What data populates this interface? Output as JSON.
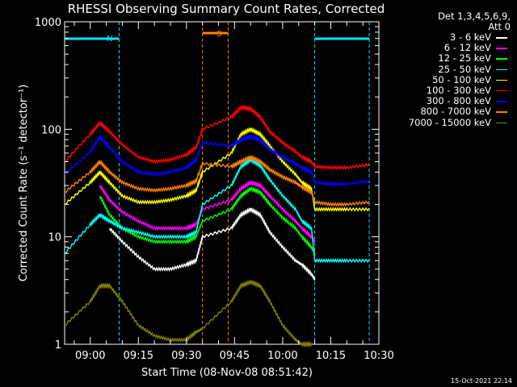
{
  "title": "RHESSI Observing Summary Count Rates, Corrected",
  "detectors": "Det 1,3,4,5,6,9,",
  "attenuator": "Att 0",
  "timestamp": "15-Oct-2021 22:14",
  "chart_data": {
    "type": "line",
    "xlabel": "Start Time (08-Nov-08 08:51:42)",
    "ylabel": "Corrected Count Rate (s⁻¹ detector⁻¹)",
    "y_scale": "log",
    "ylim": [
      1,
      1000
    ],
    "xlim": [
      "08:52",
      "10:30"
    ],
    "x_ticks": [
      "09:00",
      "09:15",
      "09:30",
      "09:45",
      "10:00",
      "10:15",
      "10:30"
    ],
    "y_ticks": [
      "1",
      "10",
      "100",
      "1000"
    ],
    "flags": [
      {
        "label": "N",
        "color": "#00e5ff",
        "start": "08:52",
        "end": "09:09"
      },
      {
        "label": "S",
        "color": "#ff8000",
        "start": "09:35",
        "end": "09:43"
      },
      {
        "label": "",
        "color": "#00e5ff",
        "start": "10:10",
        "end": "10:27"
      }
    ],
    "markers": [
      {
        "time": "09:09",
        "color": "#00e5ff"
      },
      {
        "time": "09:35",
        "color": "#ff8000"
      },
      {
        "time": "09:43",
        "color": "#ff8000"
      },
      {
        "time": "10:10",
        "color": "#00e5ff"
      },
      {
        "time": "10:27",
        "color": "#00e5ff"
      }
    ],
    "x": [
      "08:52",
      "09:00",
      "09:03",
      "09:06",
      "09:10",
      "09:15",
      "09:20",
      "09:25",
      "09:30",
      "09:33",
      "09:35",
      "09:44",
      "09:47",
      "09:50",
      "09:53",
      "09:56",
      "10:00",
      "10:04",
      "10:06",
      "10:09",
      "10:10",
      "10:15",
      "10:20",
      "10:27"
    ],
    "series": [
      {
        "name": "3 - 6 keV",
        "color": "#ffffff",
        "values": [
          null,
          null,
          null,
          12,
          9,
          6.5,
          5,
          5,
          5.5,
          6,
          10,
          12,
          16,
          18,
          16,
          11,
          8,
          6,
          5.5,
          4.5,
          4,
          null,
          null,
          null
        ]
      },
      {
        "name": "6 - 12 keV",
        "color": "#ff00ff",
        "values": [
          null,
          null,
          30,
          22,
          17,
          14,
          12,
          12,
          12,
          13,
          18,
          22,
          28,
          32,
          30,
          24,
          18,
          14,
          12,
          10,
          9,
          null,
          null,
          null
        ]
      },
      {
        "name": "12 - 25 keV",
        "color": "#00ff00",
        "values": [
          null,
          null,
          24,
          16,
          12,
          10,
          9,
          9,
          9,
          10,
          14,
          18,
          24,
          28,
          26,
          20,
          15,
          12,
          10,
          8,
          7,
          null,
          null,
          null
        ]
      },
      {
        "name": "25 - 50 keV",
        "color": "#00ffff",
        "values": [
          7,
          13,
          16,
          14,
          12,
          11,
          10,
          10,
          10,
          11,
          20,
          30,
          45,
          52,
          46,
          34,
          24,
          18,
          14,
          12,
          6,
          6,
          6,
          6
        ]
      },
      {
        "name": "50 - 100 keV",
        "color": "#ffff00",
        "values": [
          20,
          32,
          40,
          32,
          24,
          21,
          21,
          22,
          24,
          27,
          40,
          60,
          90,
          100,
          90,
          70,
          50,
          38,
          32,
          28,
          18,
          18,
          18,
          18
        ]
      },
      {
        "name": "100 - 300 keV",
        "color": "#ff0000",
        "values": [
          50,
          90,
          115,
          95,
          72,
          55,
          50,
          52,
          58,
          68,
          100,
          130,
          160,
          155,
          130,
          95,
          75,
          62,
          55,
          50,
          45,
          44,
          44,
          47
        ]
      },
      {
        "name": "300 - 800 keV",
        "color": "#0000ff",
        "values": [
          38,
          62,
          85,
          68,
          50,
          40,
          38,
          40,
          44,
          52,
          75,
          70,
          80,
          85,
          80,
          65,
          55,
          48,
          44,
          40,
          32,
          31,
          31,
          33
        ]
      },
      {
        "name": "800 - 7000 keV",
        "color": "#ff8000",
        "values": [
          26,
          40,
          50,
          40,
          32,
          28,
          27,
          28,
          30,
          33,
          48,
          45,
          50,
          55,
          50,
          42,
          36,
          32,
          29,
          26,
          21,
          20,
          20,
          21
        ]
      },
      {
        "name": "7000 - 15000 keV",
        "color": "#808000",
        "values": [
          1.5,
          2.5,
          3.5,
          3.5,
          2.5,
          1.5,
          1.2,
          1.1,
          1.1,
          1.3,
          1.4,
          2.5,
          3.5,
          3.8,
          3.5,
          2.5,
          1.5,
          1.1,
          1.0,
          1.0,
          null,
          null,
          null,
          null
        ]
      }
    ]
  }
}
